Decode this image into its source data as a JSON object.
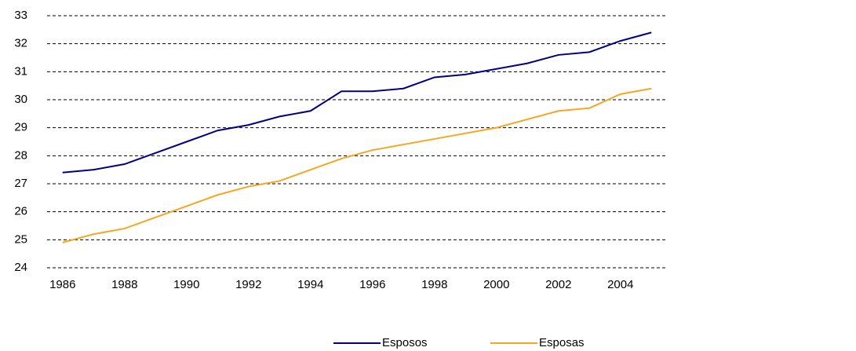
{
  "chart_data": {
    "type": "line",
    "categories": [
      "1986",
      null,
      "1988",
      null,
      "1990",
      null,
      "1992",
      null,
      "1994",
      null,
      "1996",
      null,
      "1998",
      null,
      "2000",
      null,
      "2002",
      null,
      "2004",
      null
    ],
    "series": [
      {
        "name": "Esposos",
        "color": "#000080",
        "values": [
          27.4,
          27.5,
          27.7,
          28.1,
          28.5,
          28.9,
          29.1,
          29.4,
          29.6,
          30.3,
          30.3,
          30.4,
          30.8,
          30.9,
          31.1,
          31.3,
          31.6,
          31.7,
          32.1,
          32.4
        ]
      },
      {
        "name": "Esposas",
        "color": "#f5a623",
        "values": [
          24.9,
          25.2,
          25.4,
          25.8,
          26.2,
          26.6,
          26.9,
          27.1,
          27.5,
          27.9,
          28.2,
          28.4,
          28.6,
          28.8,
          29.0,
          29.3,
          29.6,
          29.7,
          30.2,
          30.4
        ]
      }
    ],
    "ylim": [
      24,
      33
    ],
    "yticks": [
      24,
      25,
      26,
      27,
      28,
      29,
      30,
      31,
      32,
      33
    ],
    "grid": true,
    "legend": "bottom"
  }
}
